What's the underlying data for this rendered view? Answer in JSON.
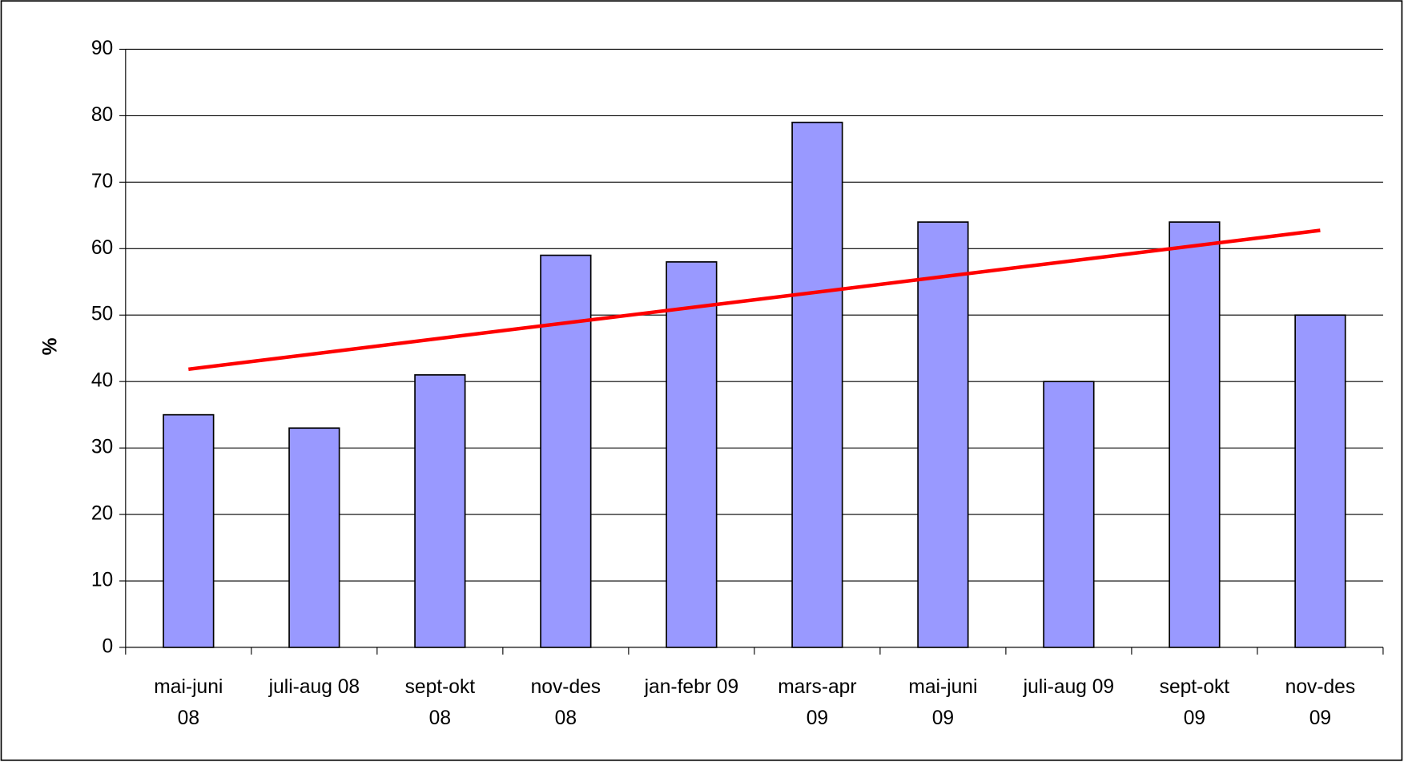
{
  "chart_data": {
    "type": "bar",
    "y_label": "%",
    "categories": [
      "mai-juni\n08",
      "juli-aug 08",
      "sept-okt\n08",
      "nov-des\n08",
      "jan-febr 09",
      "mars-apr\n09",
      "mai-juni\n09",
      "juli-aug 09",
      "sept-okt\n09",
      "nov-des\n09"
    ],
    "values": [
      35,
      33,
      41,
      59,
      58,
      79,
      64,
      40,
      64,
      50
    ],
    "color": "#9999ff",
    "trendline": {
      "color": "#ff0000",
      "values": [
        41.85,
        62.75
      ]
    },
    "ylim": [
      0,
      90
    ],
    "yticks": [
      0,
      10,
      20,
      30,
      40,
      50,
      60,
      70,
      80,
      90
    ],
    "grid": true
  }
}
